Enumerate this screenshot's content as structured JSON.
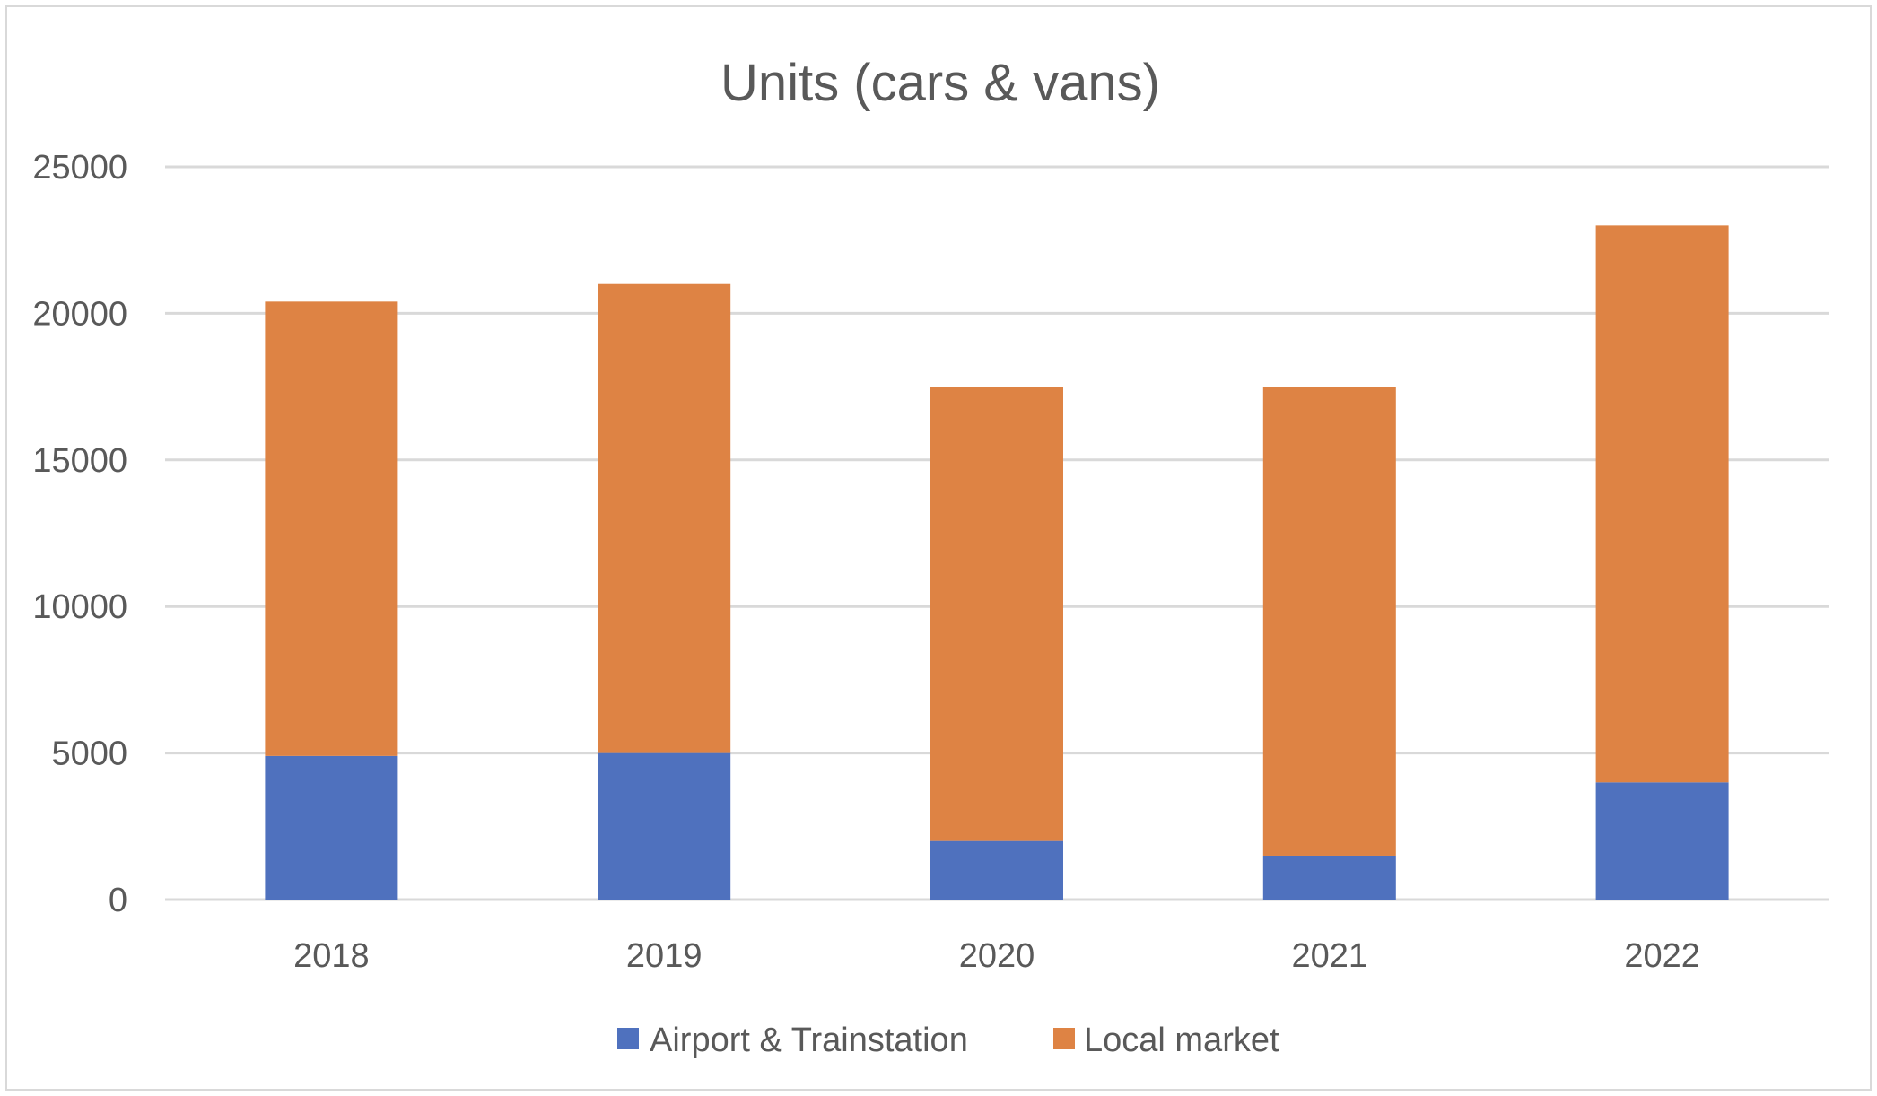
{
  "chart_data": {
    "type": "bar",
    "stacked": true,
    "title": "Units (cars & vans)",
    "xlabel": "",
    "ylabel": "",
    "categories": [
      "2018",
      "2019",
      "2020",
      "2021",
      "2022"
    ],
    "series": [
      {
        "name": "Airport & Trainstation",
        "color": "#4F71BE",
        "values": [
          4900,
          5000,
          2000,
          1500,
          4000
        ]
      },
      {
        "name": "Local market",
        "color": "#DE8344",
        "values": [
          15500,
          16000,
          15500,
          16000,
          19000
        ]
      }
    ],
    "ylim": [
      0,
      25000
    ],
    "yticks": [
      "0",
      "5000",
      "10000",
      "15000",
      "20000",
      "25000"
    ],
    "grid": true,
    "legend_position": "bottom",
    "gridline_color": "#d9d9d9"
  }
}
